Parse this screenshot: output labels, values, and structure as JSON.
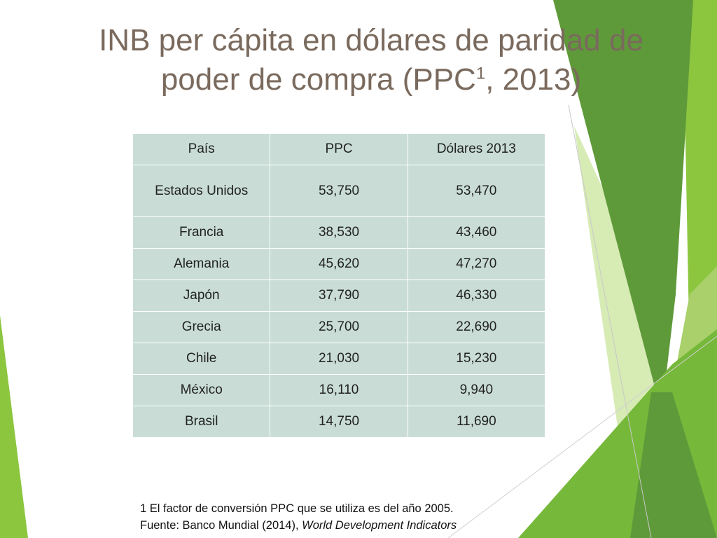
{
  "title": {
    "line1": "INB per cápita en dólares de paridad de",
    "line2_main": "poder de compra (PPC",
    "line2_sup": "1",
    "line2_end": ", 2013)"
  },
  "table": {
    "headers": [
      "País",
      "PPC",
      "Dólares 2013"
    ],
    "rows": [
      [
        "Estados Unidos",
        "53,750",
        "53,470"
      ],
      [
        "Francia",
        "38,530",
        "43,460"
      ],
      [
        "Alemania",
        "45,620",
        "47,270"
      ],
      [
        "Japón",
        "37,790",
        "46,330"
      ],
      [
        "Grecia",
        "25,700",
        "22,690"
      ],
      [
        "Chile",
        "21,030",
        "15,230"
      ],
      [
        "México",
        "16,110",
        "9,940"
      ],
      [
        "Brasil",
        "14,750",
        "11,690"
      ]
    ]
  },
  "footnote": {
    "line1": "1 El factor de conversión PPC que se utiliza es del año 2005.",
    "line2_prefix": "Fuente: Banco Mundial (2014), ",
    "line2_italic": "World Development Indicators"
  },
  "colors": {
    "title": "#7a6a5d",
    "table_fill": "#c9ddd6",
    "green_dark": "#5f9a3a",
    "green_mid": "#76b83a",
    "green_light": "#a9d06a",
    "green_pale": "#d7ebb5"
  }
}
